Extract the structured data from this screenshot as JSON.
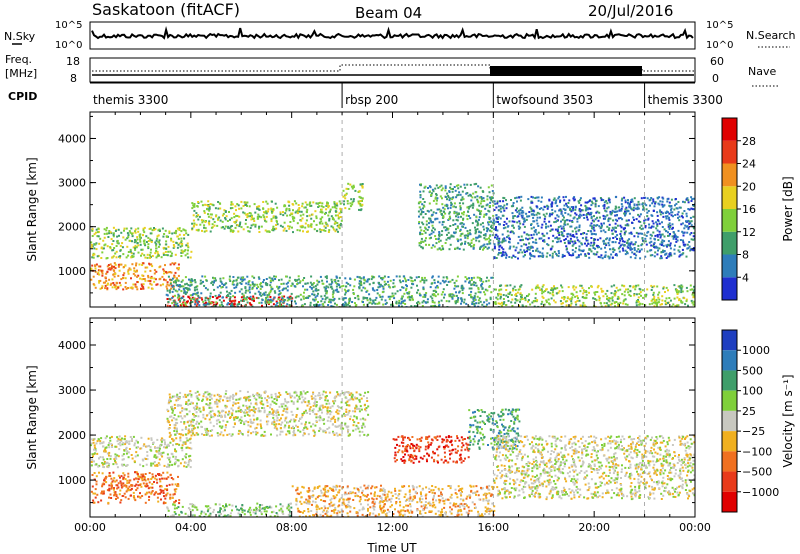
{
  "header": {
    "station": "Saskatoon (fitACF)",
    "beam": "Beam 04",
    "date": "20/Jul/2016"
  },
  "noise_panel": {
    "left_label": "N.Sky",
    "left_ticks": [
      "10^5",
      "10^0"
    ],
    "right_ticks": [
      "10^5",
      "10^0"
    ],
    "right_label": "N.Search"
  },
  "freq_panel": {
    "label_line1": "Freq.",
    "label_line2": "[MHz]",
    "left_ticks": [
      "18",
      "8"
    ],
    "right_ticks": [
      "60",
      "0"
    ],
    "right_label": "Nave"
  },
  "cpid": {
    "label": "CPID",
    "segments": [
      {
        "name": "themis 3300",
        "start_hour": 0
      },
      {
        "name": "rbsp 200",
        "start_hour": 10
      },
      {
        "name": "twofsound 3503",
        "start_hour": 16
      },
      {
        "name": "themis 3300",
        "start_hour": 22
      }
    ]
  },
  "chart_data": [
    {
      "type": "heatmap",
      "title": "Power",
      "ylabel": "Slant Range [km]",
      "xlim": [
        0,
        24
      ],
      "ylim": [
        180,
        4600
      ],
      "y_ticks": [
        "1000",
        "2000",
        "3000",
        "4000"
      ],
      "colorbar": {
        "label": "Power [dB]",
        "ticks": [
          "4",
          "8",
          "12",
          "16",
          "20",
          "24",
          "28"
        ],
        "colors": [
          "#1f2fd0",
          "#2e7dba",
          "#3f9e6a",
          "#7fcf3a",
          "#e8d020",
          "#f09020",
          "#e83a1a",
          "#e00000"
        ]
      },
      "scatter_regions": [
        {
          "x": [
            0,
            4
          ],
          "y": [
            1300,
            2000
          ],
          "level": 3
        },
        {
          "x": [
            4,
            10
          ],
          "y": [
            1900,
            2600
          ],
          "level": 3
        },
        {
          "x": [
            10,
            10.8
          ],
          "y": [
            2400,
            3000
          ],
          "level": 3
        },
        {
          "x": [
            0,
            3.5
          ],
          "y": [
            600,
            1200
          ],
          "level": 5
        },
        {
          "x": [
            3,
            8
          ],
          "y": [
            200,
            450
          ],
          "level": 7
        },
        {
          "x": [
            3,
            16
          ],
          "y": [
            200,
            900
          ],
          "level": 2
        },
        {
          "x": [
            13,
            16
          ],
          "y": [
            1500,
            3000
          ],
          "level": 2
        },
        {
          "x": [
            16,
            24
          ],
          "y": [
            1300,
            2700
          ],
          "level": 1
        },
        {
          "x": [
            16,
            24
          ],
          "y": [
            200,
            700
          ],
          "level": 3
        }
      ]
    },
    {
      "type": "heatmap",
      "title": "Velocity",
      "ylabel": "Slant Range [km]",
      "xlabel": "Time UT",
      "xlim": [
        0,
        24
      ],
      "ylim": [
        180,
        4600
      ],
      "x_ticks": [
        "00:00",
        "04:00",
        "08:00",
        "12:00",
        "16:00",
        "20:00",
        "00:00"
      ],
      "y_ticks": [
        "1000",
        "2000",
        "3000",
        "4000"
      ],
      "colorbar": {
        "label": "Velocity [m s⁻¹]",
        "ticks": [
          "1000",
          "500",
          "100",
          "25",
          "−25",
          "−100",
          "−500",
          "−1000"
        ],
        "colors": [
          "#1f3fc0",
          "#2e7dba",
          "#3f9e6a",
          "#7fcf3a",
          "#c8c8c0",
          "#f0b020",
          "#f07020",
          "#e83a1a",
          "#e00000"
        ]
      },
      "scatter_regions": [
        {
          "x": [
            3,
            11
          ],
          "y": [
            2000,
            3000
          ],
          "level": 4
        },
        {
          "x": [
            0,
            4
          ],
          "y": [
            1300,
            2000
          ],
          "level": 4
        },
        {
          "x": [
            0,
            3.5
          ],
          "y": [
            500,
            1200
          ],
          "level": 6
        },
        {
          "x": [
            3,
            8
          ],
          "y": [
            200,
            500
          ],
          "level": 3
        },
        {
          "x": [
            12,
            15
          ],
          "y": [
            1400,
            2000
          ],
          "level": 7
        },
        {
          "x": [
            15,
            17
          ],
          "y": [
            1700,
            2600
          ],
          "level": 2
        },
        {
          "x": [
            16,
            24
          ],
          "y": [
            600,
            2000
          ],
          "level": 4
        },
        {
          "x": [
            8,
            16
          ],
          "y": [
            200,
            900
          ],
          "level": 5
        }
      ]
    }
  ]
}
